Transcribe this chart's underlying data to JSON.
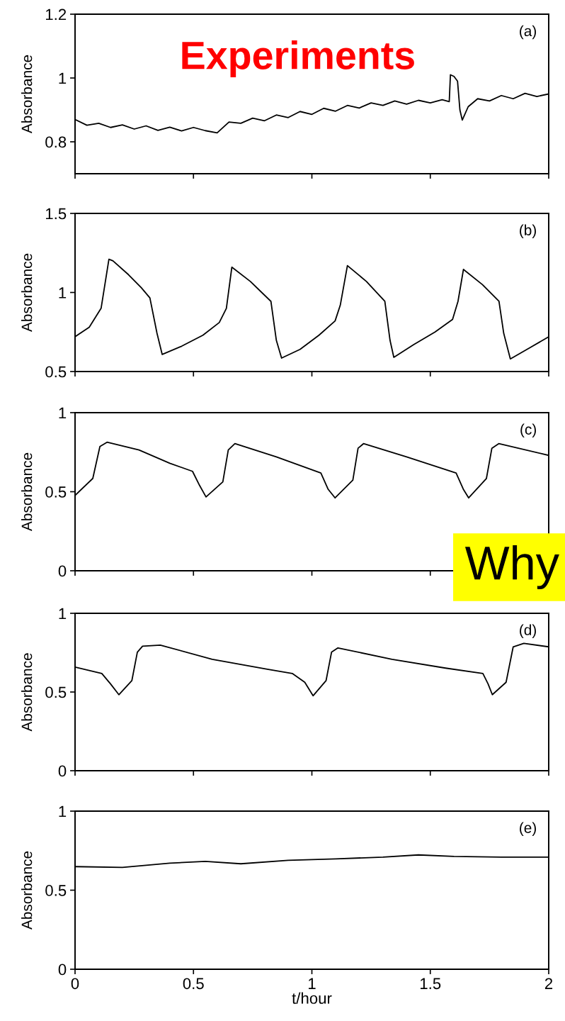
{
  "chart_data": [
    {
      "type": "line",
      "ylabel": "Absorbance",
      "annotations": [
        "(a)",
        "Experiments"
      ],
      "xlim": [
        0,
        2
      ],
      "xticks": [
        0,
        0.5,
        1,
        1.5,
        2
      ],
      "ylim": [
        0.7,
        1.2
      ],
      "yticks": [
        0.8,
        1,
        1.2
      ],
      "tick_labels": "y",
      "grid": false,
      "legend": false,
      "series": [
        {
          "color": "#000000",
          "x": [
            0,
            0.05,
            0.1,
            0.15,
            0.2,
            0.25,
            0.3,
            0.35,
            0.4,
            0.45,
            0.5,
            0.55,
            0.6,
            0.65,
            0.7,
            0.75,
            0.8,
            0.85,
            0.9,
            0.95,
            1.0,
            1.05,
            1.1,
            1.15,
            1.2,
            1.25,
            1.3,
            1.35,
            1.4,
            1.45,
            1.5,
            1.55,
            1.58,
            1.585,
            1.6,
            1.615,
            1.625,
            1.635,
            1.66,
            1.7,
            1.75,
            1.8,
            1.85,
            1.9,
            1.95,
            2.0
          ],
          "values": [
            0.87,
            0.852,
            0.858,
            0.845,
            0.853,
            0.84,
            0.85,
            0.836,
            0.846,
            0.834,
            0.845,
            0.835,
            0.828,
            0.862,
            0.858,
            0.874,
            0.866,
            0.884,
            0.876,
            0.895,
            0.886,
            0.905,
            0.896,
            0.914,
            0.906,
            0.922,
            0.914,
            0.928,
            0.918,
            0.93,
            0.922,
            0.932,
            0.926,
            1.01,
            1.005,
            0.99,
            0.9,
            0.868,
            0.91,
            0.935,
            0.928,
            0.945,
            0.935,
            0.952,
            0.942,
            0.95
          ]
        }
      ]
    },
    {
      "type": "line",
      "ylabel": "Absorbance",
      "annotations": [
        "(b)"
      ],
      "xlim": [
        0,
        2
      ],
      "xticks": [
        0,
        0.5,
        1,
        1.5,
        2
      ],
      "ylim": [
        0.5,
        1.5
      ],
      "yticks": [
        0.5,
        1,
        1.5
      ],
      "tick_labels": "y",
      "grid": false,
      "legend": false,
      "series": [
        {
          "color": "#000000",
          "x": [
            0,
            0.06,
            0.11,
            0.143,
            0.16,
            0.226,
            0.28,
            0.316,
            0.346,
            0.368,
            0.45,
            0.54,
            0.609,
            0.639,
            0.662,
            0.74,
            0.827,
            0.85,
            0.872,
            0.95,
            1.03,
            1.098,
            1.12,
            1.15,
            1.23,
            1.308,
            1.33,
            1.346,
            1.43,
            1.52,
            1.594,
            1.617,
            1.64,
            1.72,
            1.79,
            1.81,
            1.838,
            1.92,
            2.0
          ],
          "values": [
            0.72,
            0.78,
            0.9,
            1.21,
            1.2,
            1.112,
            1.03,
            0.966,
            0.742,
            0.608,
            0.66,
            0.73,
            0.81,
            0.9,
            1.16,
            1.07,
            0.944,
            0.697,
            0.585,
            0.64,
            0.73,
            0.82,
            0.92,
            1.17,
            1.07,
            0.944,
            0.697,
            0.59,
            0.67,
            0.75,
            0.83,
            0.944,
            1.146,
            1.05,
            0.944,
            0.742,
            0.58,
            0.65,
            0.72
          ]
        }
      ]
    },
    {
      "type": "line",
      "ylabel": "Absorbance",
      "annotations": [
        "(c)",
        "Why"
      ],
      "xlim": [
        0,
        2
      ],
      "xticks": [
        0,
        0.5,
        1,
        1.5,
        2
      ],
      "ylim": [
        0,
        1
      ],
      "yticks": [
        0,
        0.5,
        1
      ],
      "tick_labels": "y",
      "grid": false,
      "legend": false,
      "series": [
        {
          "color": "#000000",
          "x": [
            0,
            0.075,
            0.105,
            0.135,
            0.27,
            0.4,
            0.496,
            0.526,
            0.553,
            0.624,
            0.647,
            0.675,
            0.85,
            1.038,
            1.068,
            1.098,
            1.173,
            1.195,
            1.218,
            1.4,
            1.609,
            1.639,
            1.662,
            1.737,
            1.76,
            1.789,
            2.0
          ],
          "values": [
            0.476,
            0.584,
            0.786,
            0.813,
            0.764,
            0.68,
            0.629,
            0.539,
            0.467,
            0.562,
            0.764,
            0.804,
            0.72,
            0.618,
            0.517,
            0.461,
            0.573,
            0.775,
            0.804,
            0.72,
            0.618,
            0.517,
            0.461,
            0.584,
            0.775,
            0.804,
            0.73
          ]
        }
      ]
    },
    {
      "type": "line",
      "ylabel": "Absorbance",
      "annotations": [
        "(d)"
      ],
      "xlim": [
        0,
        2
      ],
      "xticks": [
        0,
        0.5,
        1,
        1.5,
        2
      ],
      "ylim": [
        0,
        1
      ],
      "yticks": [
        0,
        0.5,
        1
      ],
      "tick_labels": "y",
      "grid": false,
      "legend": false,
      "series": [
        {
          "color": "#000000",
          "x": [
            0,
            0.113,
            0.15,
            0.185,
            0.24,
            0.263,
            0.285,
            0.36,
            0.579,
            0.812,
            0.917,
            0.97,
            1.005,
            1.06,
            1.083,
            1.11,
            1.338,
            1.564,
            1.722,
            1.744,
            1.762,
            1.82,
            1.85,
            1.895,
            2.0
          ],
          "values": [
            0.658,
            0.618,
            0.551,
            0.483,
            0.573,
            0.753,
            0.791,
            0.798,
            0.708,
            0.645,
            0.618,
            0.562,
            0.476,
            0.573,
            0.753,
            0.78,
            0.708,
            0.652,
            0.618,
            0.551,
            0.483,
            0.562,
            0.787,
            0.809,
            0.787
          ]
        }
      ]
    },
    {
      "type": "line",
      "xlabel": "t/hour",
      "ylabel": "Absorbance",
      "annotations": [
        "(e)"
      ],
      "xlim": [
        0,
        2
      ],
      "xticks": [
        0,
        0.5,
        1,
        1.5,
        2
      ],
      "ylim": [
        0,
        1
      ],
      "yticks": [
        0,
        0.5,
        1
      ],
      "grid": false,
      "legend": false,
      "series": [
        {
          "color": "#000000",
          "x": [
            0,
            0.2,
            0.4,
            0.55,
            0.7,
            0.9,
            1.1,
            1.3,
            1.45,
            1.6,
            1.8,
            2.0
          ],
          "values": [
            0.649,
            0.644,
            0.671,
            0.682,
            0.667,
            0.689,
            0.698,
            0.709,
            0.723,
            0.714,
            0.709,
            0.709
          ]
        }
      ]
    }
  ]
}
